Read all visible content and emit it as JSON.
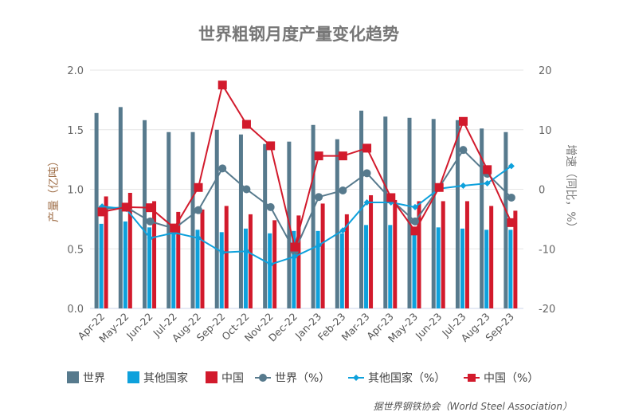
{
  "chart_data": {
    "type": "bar",
    "title": "世界粗钢月度产量变化趋势",
    "ylabel": "产量（亿吨）",
    "y2label": "增速（同比，%）",
    "ylim": [
      0,
      2.0
    ],
    "y2lim": [
      -20,
      20
    ],
    "yticks": [
      "0.0",
      "0.5",
      "1.0",
      "1.5",
      "2.0"
    ],
    "y2ticks": [
      "-20",
      "-10",
      "0",
      "10",
      "20"
    ],
    "grid": true,
    "legend_position": "bottom",
    "categories": [
      "Apr-22",
      "May-22",
      "Jun-22",
      "Jul-22",
      "Aug-22",
      "Sep-22",
      "Oct-22",
      "Nov-22",
      "Dec-22",
      "Jan-23",
      "Feb-23",
      "Mar-23",
      "Apr-23",
      "May-23",
      "Jun-23",
      "Jul-23",
      "Aug-23",
      "Sep-23"
    ],
    "bar_series": [
      {
        "name": "世界",
        "color": "#577a8d",
        "values": [
          1.64,
          1.69,
          1.58,
          1.48,
          1.48,
          1.5,
          1.46,
          1.38,
          1.4,
          1.54,
          1.42,
          1.66,
          1.61,
          1.6,
          1.59,
          1.58,
          1.51,
          1.48
        ]
      },
      {
        "name": "其他国家",
        "color": "#0ea1dc",
        "values": [
          0.71,
          0.73,
          0.68,
          0.65,
          0.66,
          0.64,
          0.67,
          0.63,
          0.65,
          0.65,
          0.63,
          0.7,
          0.7,
          0.65,
          0.68,
          0.67,
          0.66,
          0.66
        ]
      },
      {
        "name": "中国",
        "color": "#d21a2c",
        "values": [
          0.94,
          0.97,
          0.9,
          0.81,
          0.83,
          0.86,
          0.79,
          0.74,
          0.78,
          0.88,
          0.79,
          0.95,
          0.91,
          0.9,
          0.9,
          0.9,
          0.86,
          0.82
        ]
      }
    ],
    "line_series": [
      {
        "name": "世界（%）",
        "color": "#577a8d",
        "marker": "circle",
        "values": [
          -3.3,
          -3.0,
          -5.4,
          -6.6,
          -3.5,
          3.5,
          0.0,
          -3.0,
          -10.4,
          -1.3,
          -0.2,
          2.7,
          -1.7,
          -5.4,
          0.3,
          6.6,
          2.6,
          -1.4
        ]
      },
      {
        "name": "其他国家（%）",
        "color": "#0ea1dc",
        "marker": "diamond",
        "values": [
          -2.9,
          -3.3,
          -8.2,
          -7.3,
          -8.2,
          -10.6,
          -10.4,
          -12.6,
          -11.3,
          -9.4,
          -6.9,
          -2.2,
          -2.2,
          -3.0,
          0.1,
          0.6,
          1.0,
          3.9
        ]
      },
      {
        "name": "中国（%）",
        "color": "#d21a2c",
        "marker": "square",
        "values": [
          -3.8,
          -3.0,
          -3.1,
          -6.5,
          0.3,
          17.5,
          10.9,
          7.3,
          -9.7,
          5.6,
          5.6,
          6.9,
          -1.4,
          -7.0,
          0.3,
          11.4,
          3.3,
          -5.6
        ]
      }
    ],
    "source": "据世界钢铁协会（World Steel Association）"
  }
}
